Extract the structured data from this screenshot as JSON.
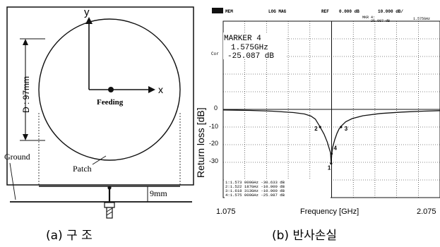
{
  "figure_a": {
    "caption": "(a) 구 조",
    "axis_y": "y",
    "axis_x": "x",
    "feeding_label": "Feeding",
    "diameter_label": "D : 97mm",
    "ground_label": "Ground",
    "patch_label": "Patch",
    "height_label": "9mm"
  },
  "figure_b": {
    "caption": "(b) 반사손실",
    "header": {
      "mode": "MEM",
      "format": "LOG MAG",
      "ref": "REF",
      "ref_value": "0.000 dB",
      "scale": "10.000 dB/",
      "marker_short": "MKR 4:",
      "marker_short_value": "-25.087 dB",
      "marker_freq_short": "1.575GHz"
    },
    "marker": {
      "title": "MARKER 4",
      "freq": "1.575GHz",
      "value": "-25.087 dB"
    },
    "cor_label": "Cor",
    "ylabel": "Return loss [dB]",
    "xlabel": "Frequency [GHz]",
    "x_start": "1.075",
    "x_stop": "2.075",
    "y_ticks": [
      "0",
      "-10",
      "-20",
      "-30"
    ],
    "marker_labels": [
      "1",
      "2",
      "3",
      "4"
    ],
    "marker_table": [
      "1:1.573 000GHz   -30.633 dB",
      "2:1.522 187GHz   -10.000 dB",
      "3:1.618 313GHz   -10.000 dB",
      "4:1.575 000GHz   -25.087 dB"
    ]
  },
  "chart_data": {
    "type": "line",
    "xlabel": "Frequency [GHz]",
    "ylabel": "Return loss [dB]",
    "xlim": [
      1.075,
      2.075
    ],
    "ylim": [
      -50,
      50
    ],
    "grid": true,
    "series": [
      {
        "x": [
          1.075,
          1.2,
          1.3,
          1.4,
          1.45,
          1.48,
          1.5,
          1.52,
          1.54,
          1.555,
          1.565,
          1.57,
          1.573,
          1.576,
          1.58,
          1.59,
          1.6,
          1.61,
          1.62,
          1.64,
          1.67,
          1.72,
          1.8,
          1.9,
          2.0,
          2.075
        ],
        "y": [
          -0.3,
          -0.6,
          -1.0,
          -1.8,
          -2.6,
          -3.8,
          -5.5,
          -9.5,
          -14,
          -18.5,
          -22.5,
          -24.5,
          -30.6,
          -25.1,
          -21.5,
          -17,
          -13.5,
          -11,
          -9.4,
          -7,
          -5.2,
          -3.6,
          -2.3,
          -1.5,
          -1.0,
          -0.7
        ]
      }
    ],
    "markers": [
      {
        "label": "1",
        "x": 1.573,
        "y": -30.633
      },
      {
        "label": "2",
        "x": 1.522187,
        "y": -10.0
      },
      {
        "label": "3",
        "x": 1.618313,
        "y": -10.0
      },
      {
        "label": "4",
        "x": 1.575,
        "y": -25.087
      }
    ]
  }
}
